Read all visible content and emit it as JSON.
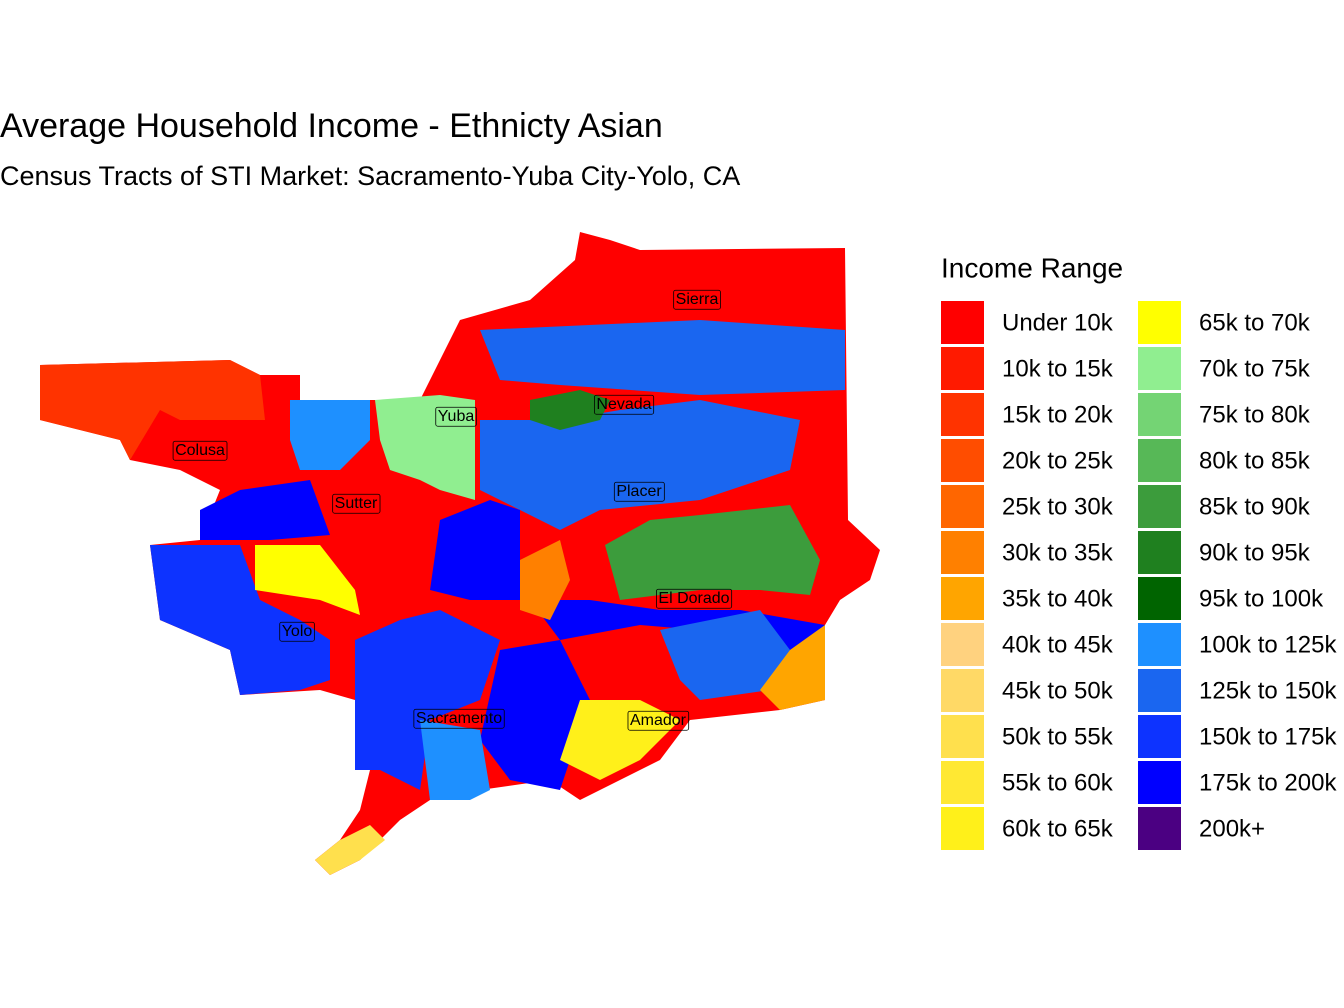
{
  "header": {
    "title": "Average Household Income - Ethnicty Asian",
    "subtitle": "Census Tracts of STI Market: Sacramento-Yuba City-Yolo, CA"
  },
  "legend": {
    "title": "Income Range",
    "items": [
      {
        "label": "Under 10k",
        "color": "#FF0000"
      },
      {
        "label": "10k to 15k",
        "color": "#FF1A00"
      },
      {
        "label": "15k to 20k",
        "color": "#FF3300"
      },
      {
        "label": "20k to 25k",
        "color": "#FF4D00"
      },
      {
        "label": "25k to 30k",
        "color": "#FF6600"
      },
      {
        "label": "30k to 35k",
        "color": "#FF8000"
      },
      {
        "label": "35k to 40k",
        "color": "#FFA500"
      },
      {
        "label": "40k to 45k",
        "color": "#FFD27F"
      },
      {
        "label": "45k to 50k",
        "color": "#FFD966"
      },
      {
        "label": "50k to 55k",
        "color": "#FFE04D"
      },
      {
        "label": "55k to 60k",
        "color": "#FFE833"
      },
      {
        "label": "60k to 65k",
        "color": "#FFF01A"
      },
      {
        "label": "65k to 70k",
        "color": "#FFFF00"
      },
      {
        "label": "70k to 75k",
        "color": "#90EE90"
      },
      {
        "label": "75k to 80k",
        "color": "#74D474"
      },
      {
        "label": "80k to 85k",
        "color": "#57B857"
      },
      {
        "label": "85k to 90k",
        "color": "#3C9C3C"
      },
      {
        "label": "90k to 95k",
        "color": "#1F801F"
      },
      {
        "label": "95k to 100k",
        "color": "#006400"
      },
      {
        "label": "100k to 125k",
        "color": "#1E90FF"
      },
      {
        "label": "125k to 150k",
        "color": "#1A66F0"
      },
      {
        "label": "150k to 175k",
        "color": "#0D33FF"
      },
      {
        "label": "175k to 200k",
        "color": "#0000FF"
      },
      {
        "label": "200k+",
        "color": "#4B0082"
      }
    ]
  },
  "counties": [
    {
      "name": "Sierra"
    },
    {
      "name": "Yuba"
    },
    {
      "name": "Nevada"
    },
    {
      "name": "Colusa"
    },
    {
      "name": "Placer"
    },
    {
      "name": "Sutter"
    },
    {
      "name": "El Dorado"
    },
    {
      "name": "Yolo"
    },
    {
      "name": "Sacramento"
    },
    {
      "name": "Amador"
    }
  ]
}
